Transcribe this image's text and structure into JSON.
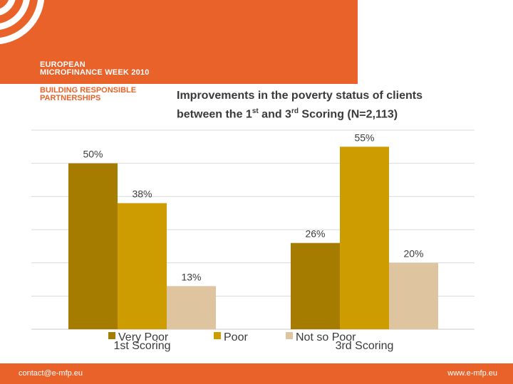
{
  "header": {
    "event_line1": "EUROPEAN",
    "event_line2": "MICROFINANCE WEEK 2010",
    "tagline_line1": "BUILDING RESPONSIBLE",
    "tagline_line2": "PARTNERSHIPS",
    "brand_color": "#e8622a"
  },
  "title": {
    "line1": "Improvements in the poverty status of clients",
    "line2_pre": "between the 1",
    "line2_sup1": "st",
    "line2_mid": " and 3",
    "line2_sup2": "rd",
    "line2_post": " Scoring (N=2,113)"
  },
  "chart_data": {
    "type": "bar",
    "categories": [
      "1st Scoring",
      "3rd Scoring"
    ],
    "series": [
      {
        "name": "Very Poor",
        "values": [
          50,
          26
        ],
        "labels": [
          "50%",
          "26%"
        ],
        "color": "#a67c00"
      },
      {
        "name": "Poor",
        "values": [
          38,
          55
        ],
        "labels": [
          "38%",
          "55%"
        ],
        "color": "#cc9c00"
      },
      {
        "name": "Not so Poor",
        "values": [
          13,
          20
        ],
        "labels": [
          "13%",
          "20%"
        ],
        "color": "#dfc59f"
      }
    ],
    "ylim": [
      0,
      60
    ],
    "grid": true,
    "legend": "bottom",
    "xlabel": "",
    "ylabel": ""
  },
  "footer": {
    "email": "contact@e-mfp.eu",
    "website": "www.e-mfp.eu"
  }
}
